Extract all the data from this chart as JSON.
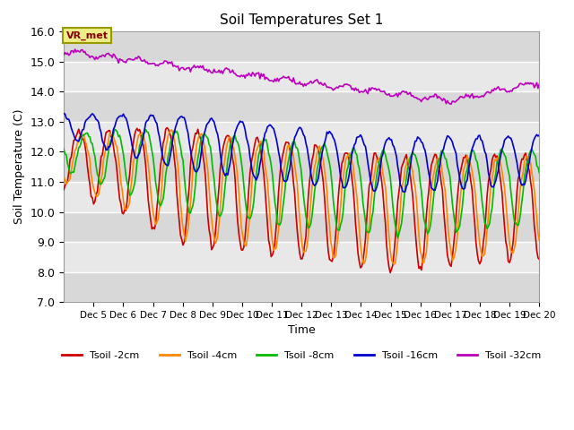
{
  "title": "Soil Temperatures Set 1",
  "xlabel": "Time",
  "ylabel": "Soil Temperature (C)",
  "ylim": [
    7.0,
    16.0
  ],
  "yticks": [
    7.0,
    8.0,
    9.0,
    10.0,
    11.0,
    12.0,
    13.0,
    14.0,
    15.0,
    16.0
  ],
  "xlim_start": 4,
  "xlim_end": 20,
  "lines": [
    {
      "label": "Tsoil -2cm",
      "color": "#cc0000"
    },
    {
      "label": "Tsoil -4cm",
      "color": "#ff8800"
    },
    {
      "label": "Tsoil -8cm",
      "color": "#00bb00"
    },
    {
      "label": "Tsoil -16cm",
      "color": "#0000cc"
    },
    {
      "label": "Tsoil -32cm",
      "color": "#bb00bb"
    }
  ],
  "annotation_text": "VR_met",
  "fig_bg": "#ffffff",
  "plot_bg_light": "#e8e8e8",
  "plot_bg_dark": "#d8d8d8",
  "grid_color": "#ffffff"
}
